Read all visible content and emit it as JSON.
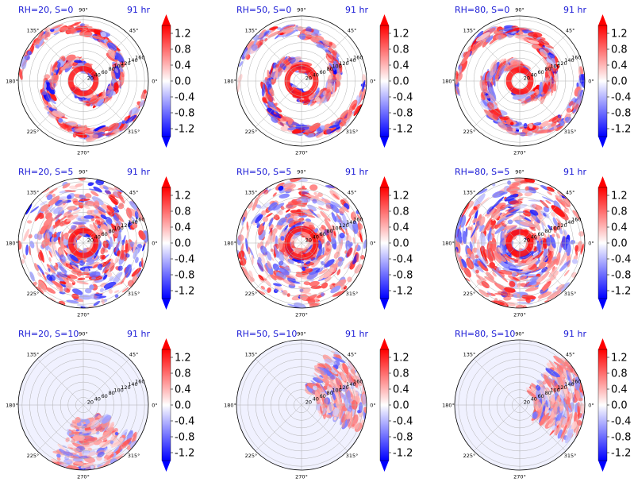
{
  "figure": {
    "colormap": "bwr",
    "colors": {
      "negative": "#0000ff",
      "zero": "#ffffff",
      "positive": "#ff0000",
      "title": "#1a1ad6"
    }
  },
  "chart_data": [
    {
      "type": "heatmap",
      "projection": "polar",
      "title_left": "RH=20, S=0",
      "title_right": "91 hr",
      "rh": 20,
      "s": 0,
      "angle_ticks": [
        "0°",
        "45°",
        "90°",
        "135°",
        "180°",
        "225°",
        "270°",
        "315°"
      ],
      "radial_ticks": [
        "20",
        "40",
        "60",
        "80",
        "100",
        "120",
        "140",
        "160"
      ],
      "colorbar": {
        "ticks": [
          "1.2",
          "0.8",
          "0.4",
          "0.0",
          "-0.4",
          "-0.8",
          "-1.2"
        ],
        "range": [
          -1.4,
          1.4
        ],
        "extend": "both"
      }
    },
    {
      "type": "heatmap",
      "projection": "polar",
      "title_left": "RH=50, S=0",
      "title_right": "91 hr",
      "rh": 50,
      "s": 0,
      "angle_ticks": [
        "0°",
        "45°",
        "90°",
        "135°",
        "180°",
        "225°",
        "270°",
        "315°"
      ],
      "radial_ticks": [
        "20",
        "40",
        "60",
        "80",
        "100",
        "120",
        "140",
        "160"
      ],
      "colorbar": {
        "ticks": [
          "1.2",
          "0.8",
          "0.4",
          "0.0",
          "-0.4",
          "-0.8",
          "-1.2"
        ],
        "range": [
          -1.4,
          1.4
        ],
        "extend": "both"
      }
    },
    {
      "type": "heatmap",
      "projection": "polar",
      "title_left": "RH=80, S=0",
      "title_right": "91 hr",
      "rh": 80,
      "s": 0,
      "angle_ticks": [
        "0°",
        "45°",
        "90°",
        "135°",
        "180°",
        "225°",
        "270°",
        "315°"
      ],
      "radial_ticks": [
        "20",
        "40",
        "60",
        "80",
        "100",
        "120",
        "140",
        "160"
      ],
      "colorbar": {
        "ticks": [
          "1.2",
          "0.8",
          "0.4",
          "0.0",
          "-0.4",
          "-0.8",
          "-1.2"
        ],
        "range": [
          -1.4,
          1.4
        ],
        "extend": "both"
      }
    },
    {
      "type": "heatmap",
      "projection": "polar",
      "title_left": "RH=20, S=5",
      "title_right": "91 hr",
      "rh": 20,
      "s": 5,
      "angle_ticks": [
        "0°",
        "45°",
        "90°",
        "135°",
        "180°",
        "225°",
        "270°",
        "315°"
      ],
      "radial_ticks": [
        "20",
        "40",
        "60",
        "80",
        "100",
        "120",
        "140",
        "160"
      ],
      "colorbar": {
        "ticks": [
          "1.2",
          "0.8",
          "0.4",
          "0.0",
          "-0.4",
          "-0.8",
          "-1.2"
        ],
        "range": [
          -1.4,
          1.4
        ],
        "extend": "both"
      }
    },
    {
      "type": "heatmap",
      "projection": "polar",
      "title_left": "RH=50, S=5",
      "title_right": "91 hr",
      "rh": 50,
      "s": 5,
      "angle_ticks": [
        "0°",
        "45°",
        "90°",
        "135°",
        "180°",
        "225°",
        "270°",
        "315°"
      ],
      "radial_ticks": [
        "20",
        "40",
        "60",
        "80",
        "100",
        "120",
        "140",
        "160"
      ],
      "colorbar": {
        "ticks": [
          "1.2",
          "0.8",
          "0.4",
          "0.0",
          "-0.4",
          "-0.8",
          "-1.2"
        ],
        "range": [
          -1.4,
          1.4
        ],
        "extend": "both"
      }
    },
    {
      "type": "heatmap",
      "projection": "polar",
      "title_left": "RH=80, S=5",
      "title_right": "91 hr",
      "rh": 80,
      "s": 5,
      "angle_ticks": [
        "0°",
        "45°",
        "90°",
        "135°",
        "180°",
        "225°",
        "270°",
        "315°"
      ],
      "radial_ticks": [
        "20",
        "40",
        "60",
        "80",
        "100",
        "120",
        "140",
        "160"
      ],
      "colorbar": {
        "ticks": [
          "1.2",
          "0.8",
          "0.4",
          "0.0",
          "-0.4",
          "-0.8",
          "-1.2"
        ],
        "range": [
          -1.4,
          1.4
        ],
        "extend": "both"
      }
    },
    {
      "type": "heatmap",
      "projection": "polar",
      "title_left": "RH=20, S=10",
      "title_right": "91 hr",
      "rh": 20,
      "s": 10,
      "angle_ticks": [
        "0°",
        "45°",
        "90°",
        "135°",
        "180°",
        "225°",
        "270°",
        "315°"
      ],
      "radial_ticks": [
        "20",
        "40",
        "60",
        "80",
        "100",
        "120",
        "140",
        "160"
      ],
      "colorbar": {
        "ticks": [
          "1.2",
          "0.8",
          "0.4",
          "0.0",
          "-0.4",
          "-0.8",
          "-1.2"
        ],
        "range": [
          -1.4,
          1.4
        ],
        "extend": "both"
      }
    },
    {
      "type": "heatmap",
      "projection": "polar",
      "title_left": "RH=50, S=10",
      "title_right": "91 hr",
      "rh": 50,
      "s": 10,
      "angle_ticks": [
        "0°",
        "45°",
        "90°",
        "135°",
        "180°",
        "225°",
        "270°",
        "315°"
      ],
      "radial_ticks": [
        "20",
        "40",
        "60",
        "80",
        "100",
        "120",
        "140",
        "160"
      ],
      "colorbar": {
        "ticks": [
          "1.2",
          "0.8",
          "0.4",
          "0.0",
          "-0.4",
          "-0.8",
          "-1.2"
        ],
        "range": [
          -1.4,
          1.4
        ],
        "extend": "both"
      }
    },
    {
      "type": "heatmap",
      "projection": "polar",
      "title_left": "RH=80, S=10",
      "title_right": "91 hr",
      "rh": 80,
      "s": 10,
      "angle_ticks": [
        "0°",
        "45°",
        "90°",
        "135°",
        "180°",
        "225°",
        "270°",
        "315°"
      ],
      "radial_ticks": [
        "20",
        "40",
        "60",
        "80",
        "100",
        "120",
        "140",
        "160"
      ],
      "colorbar": {
        "ticks": [
          "1.2",
          "0.8",
          "0.4",
          "0.0",
          "-0.4",
          "-0.8",
          "-1.2"
        ],
        "range": [
          -1.4,
          1.4
        ],
        "extend": "both"
      }
    }
  ]
}
